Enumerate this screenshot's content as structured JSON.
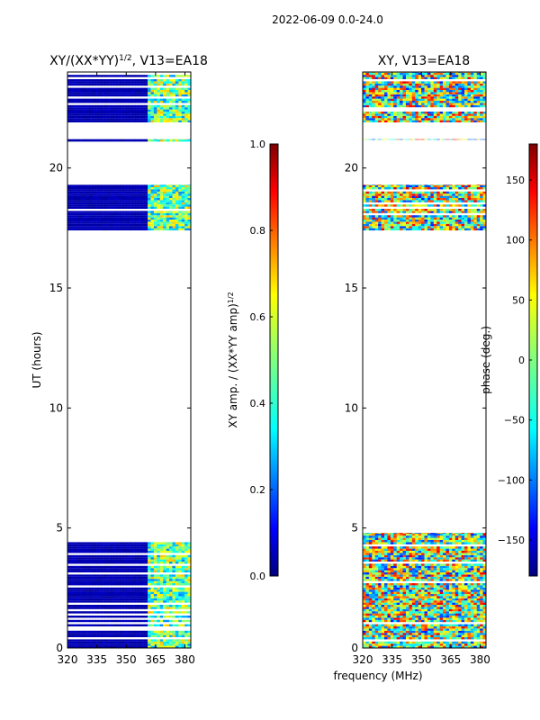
{
  "chart_data": [
    {
      "type": "heatmap",
      "suptitle": "2022-06-09 0.0-24.0",
      "title_main": "XY/(XX*YY)",
      "title_sup": "1/2",
      "title_suffix": ", V13=EA18",
      "xlabel": "",
      "ylabel": "UT (hours)",
      "xlim": [
        320,
        383
      ],
      "ylim": [
        0,
        24
      ],
      "xticks": [
        320,
        335,
        350,
        365,
        380
      ],
      "yticks": [
        0,
        5,
        10,
        15,
        20
      ],
      "colormap": "jet",
      "colorbar": {
        "label_main": "XY amp. / (XX*YY amp)",
        "label_sup": "1/2",
        "range": [
          0.0,
          1.0
        ],
        "ticks": [
          "0.0",
          "0.2",
          "0.4",
          "0.6",
          "0.8",
          "1.0"
        ]
      },
      "observation_blocks_hours": [
        [
          0.0,
          4.8
        ],
        [
          17.4,
          19.3
        ],
        [
          21.1,
          21.2
        ],
        [
          21.9,
          24.0
        ]
      ],
      "value_bands": [
        {
          "freq_range": [
            320,
            360
          ],
          "value": 0.05
        },
        {
          "freq_range": [
            360,
            383
          ],
          "value": 0.45
        }
      ]
    },
    {
      "type": "heatmap",
      "title": "XY, V13=EA18",
      "xlabel": "frequency (MHz)",
      "ylabel": "",
      "xlim": [
        320,
        383
      ],
      "ylim": [
        0,
        24
      ],
      "xticks": [
        320,
        335,
        350,
        365,
        380
      ],
      "yticks": [
        0,
        5,
        10,
        15,
        20
      ],
      "colormap": "jet",
      "colorbar": {
        "label": "phase (deg.)",
        "range": [
          -180,
          180
        ],
        "ticks": [
          "150",
          "100",
          "50",
          "0",
          "−50",
          "−100",
          "−150"
        ]
      },
      "observation_blocks_hours": [
        [
          0.0,
          4.8
        ],
        [
          17.4,
          19.3
        ],
        [
          21.1,
          21.2
        ],
        [
          21.9,
          24.0
        ]
      ]
    }
  ],
  "colors": {
    "jet": [
      "#00007f",
      "#0000ff",
      "#007fff",
      "#00ffff",
      "#7fff7f",
      "#ffff00",
      "#ff7f00",
      "#ff0000",
      "#7f0000"
    ]
  }
}
